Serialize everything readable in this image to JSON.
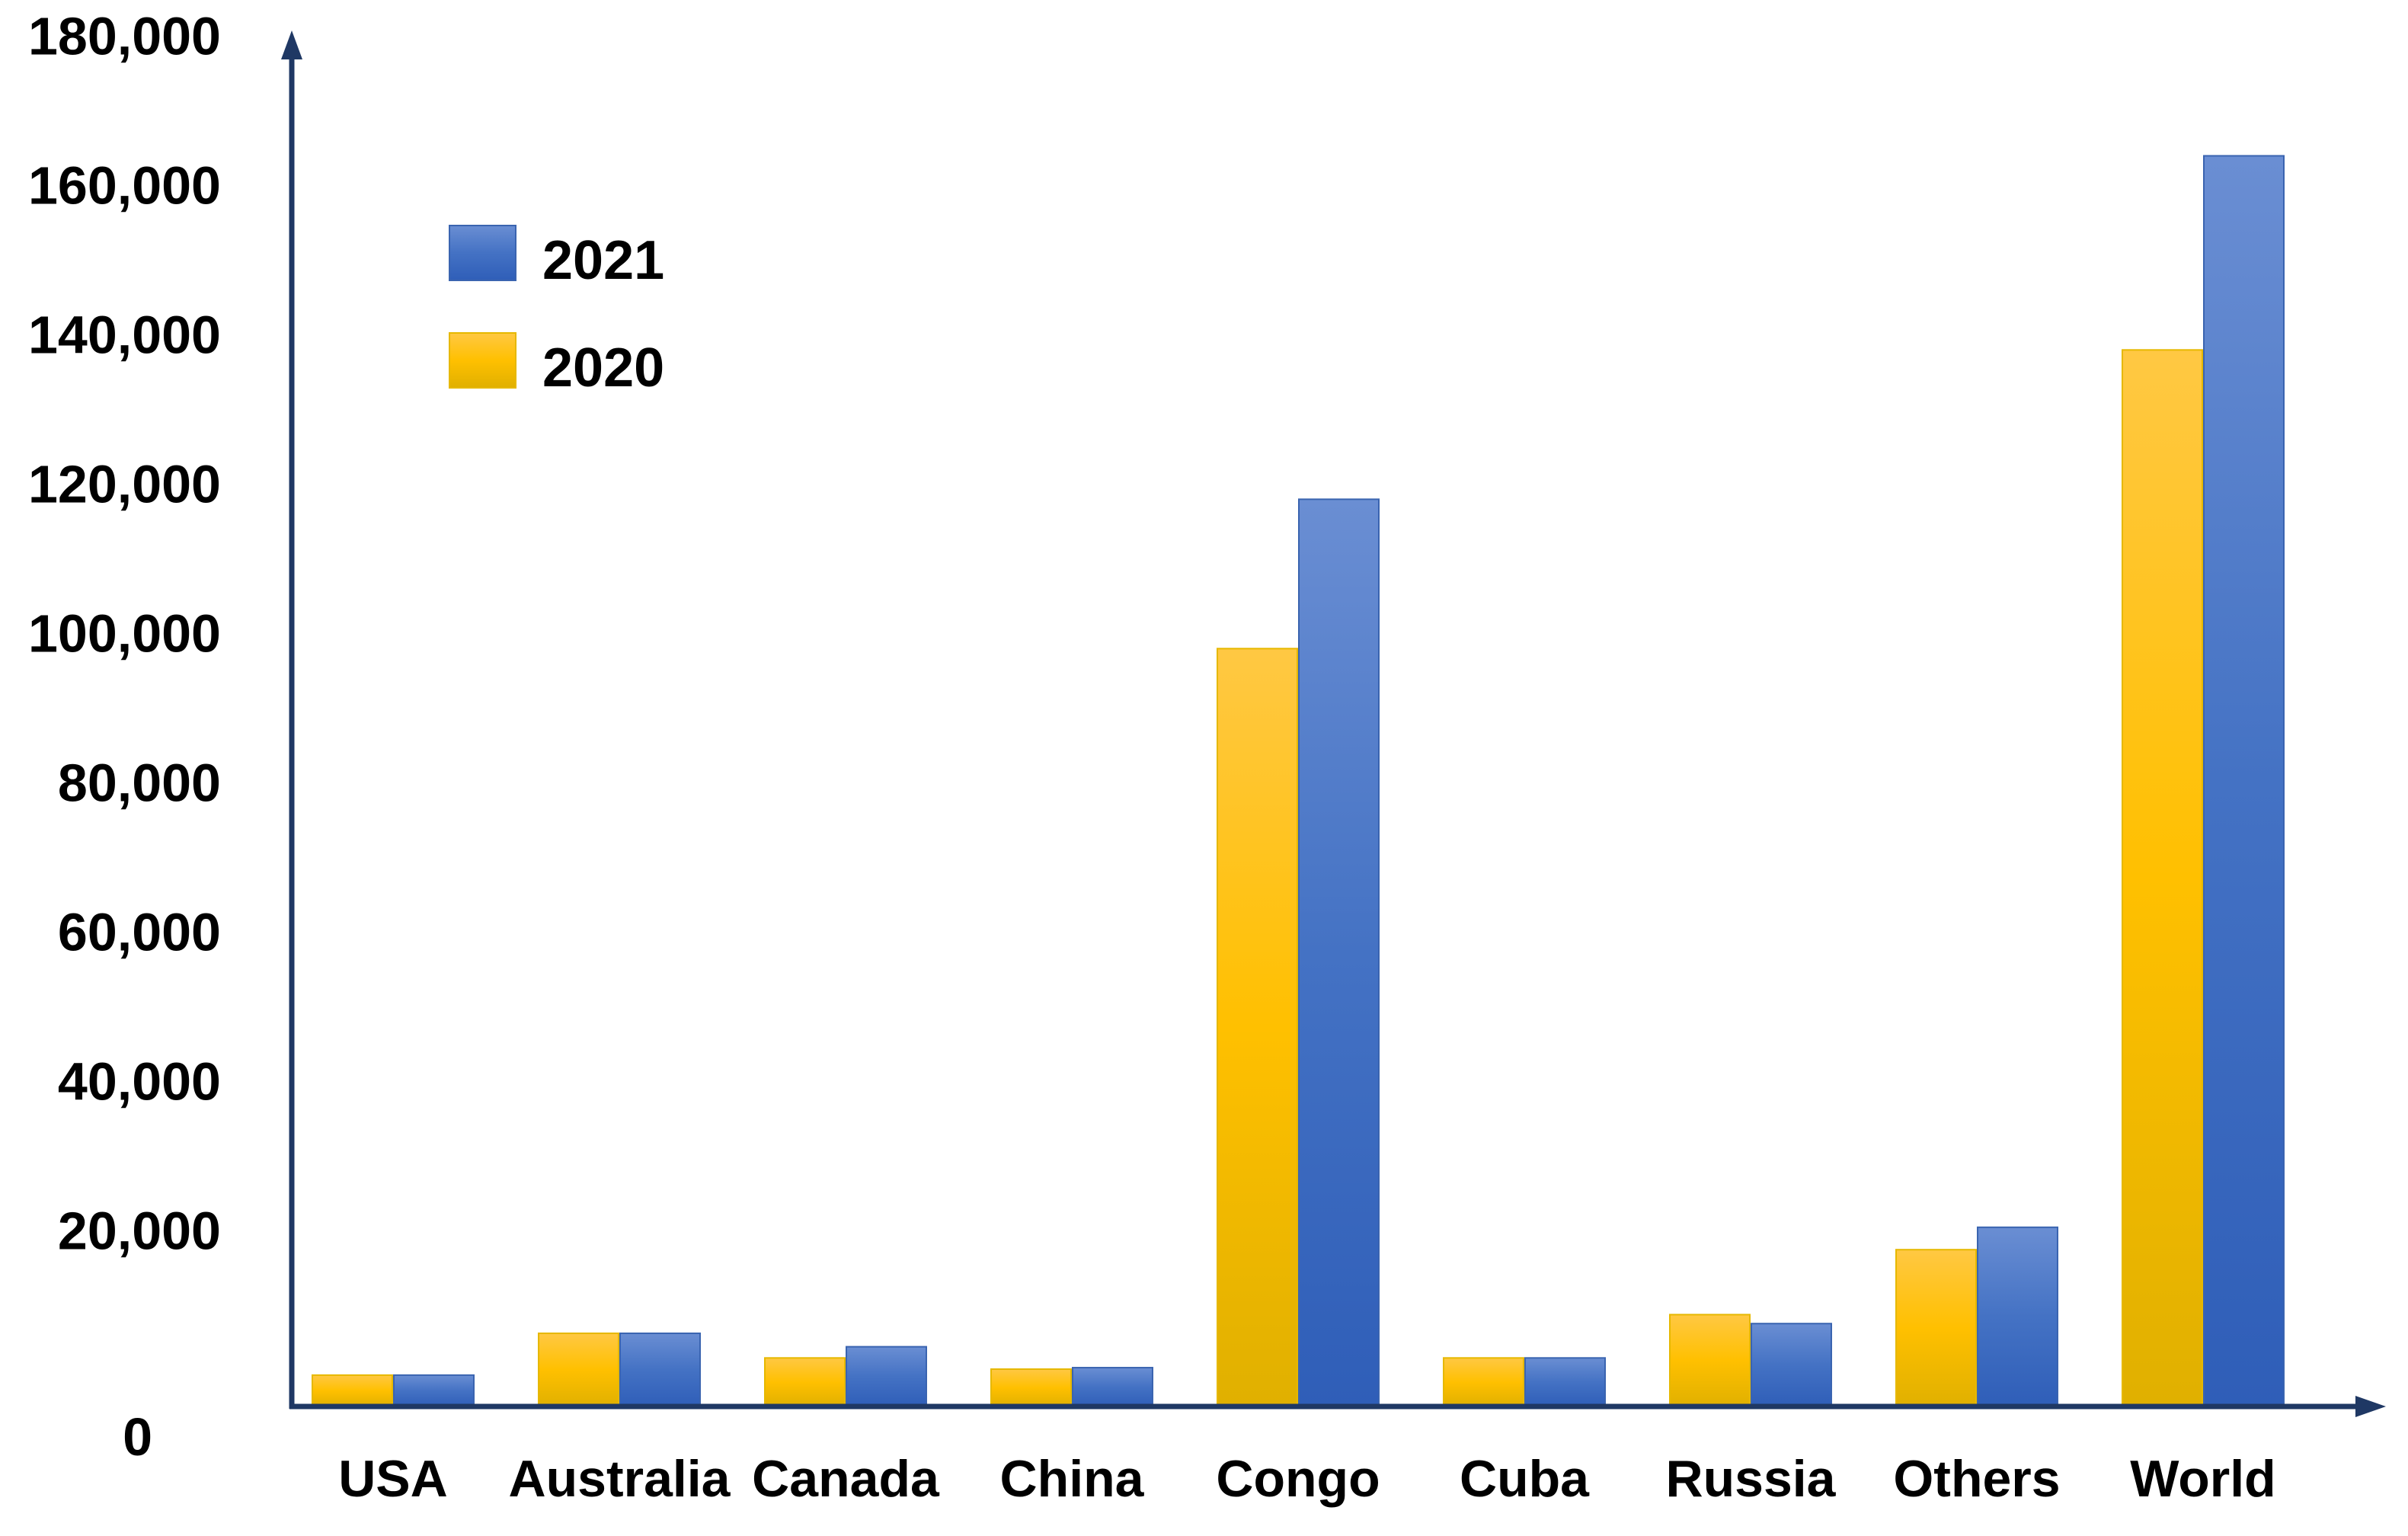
{
  "chart_data": {
    "type": "bar",
    "categories": [
      "USA",
      "Australia",
      "Canada",
      "China",
      "Congo",
      "Cuba",
      "Russia",
      "Others",
      "World"
    ],
    "series": [
      {
        "name": "2020",
        "values": [
          700,
          6300,
          3000,
          1500,
          98000,
          3000,
          8800,
          17500,
          138000
        ],
        "color": "#FFC000"
      },
      {
        "name": "2021",
        "values": [
          700,
          6300,
          4500,
          1700,
          118000,
          3000,
          7600,
          20500,
          164000
        ],
        "color": "#4472C4"
      }
    ],
    "legend_order": [
      "2021",
      "2020"
    ],
    "legend_position": "top-left",
    "y_ticks": [
      "0",
      "20,000",
      "40,000",
      "60,000",
      "80,000",
      "100,000",
      "120,000",
      "140,000",
      "160,000",
      "180,000"
    ],
    "ylim": [
      -3500,
      180000
    ],
    "grid": false,
    "axis_color": "#1F3864",
    "title": "",
    "xlabel": "",
    "ylabel": ""
  }
}
